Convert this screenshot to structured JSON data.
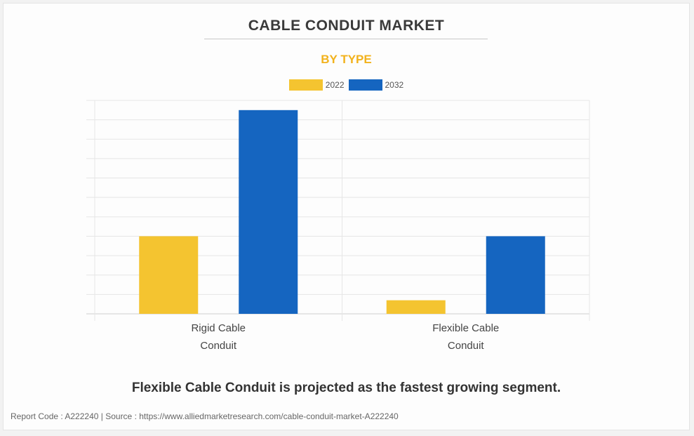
{
  "header": {
    "title": "CABLE CONDUIT MARKET",
    "subtitle": "BY TYPE"
  },
  "colors": {
    "series_2022": "#f4c430",
    "series_2032": "#1565c0",
    "subtitle": "#f2b21c"
  },
  "chart_data": {
    "type": "bar",
    "title": "CABLE CONDUIT MARKET",
    "subtitle": "BY TYPE",
    "categories": [
      [
        "Rigid Cable",
        "Conduit"
      ],
      [
        "Flexible Cable",
        "Conduit"
      ]
    ],
    "series": [
      {
        "name": "2022",
        "values": [
          4.0,
          0.7
        ]
      },
      {
        "name": "2032",
        "values": [
          10.5,
          4.0
        ]
      }
    ],
    "ylim": [
      0,
      11
    ],
    "grid": true,
    "legend_position": "top-center",
    "y_tick_labels_visible": false
  },
  "note": "Flexible Cable Conduit is projected as the fastest growing segment.",
  "footer": "Report Code : A222240  |  Source : https://www.alliedmarketresearch.com/cable-conduit-market-A222240"
}
